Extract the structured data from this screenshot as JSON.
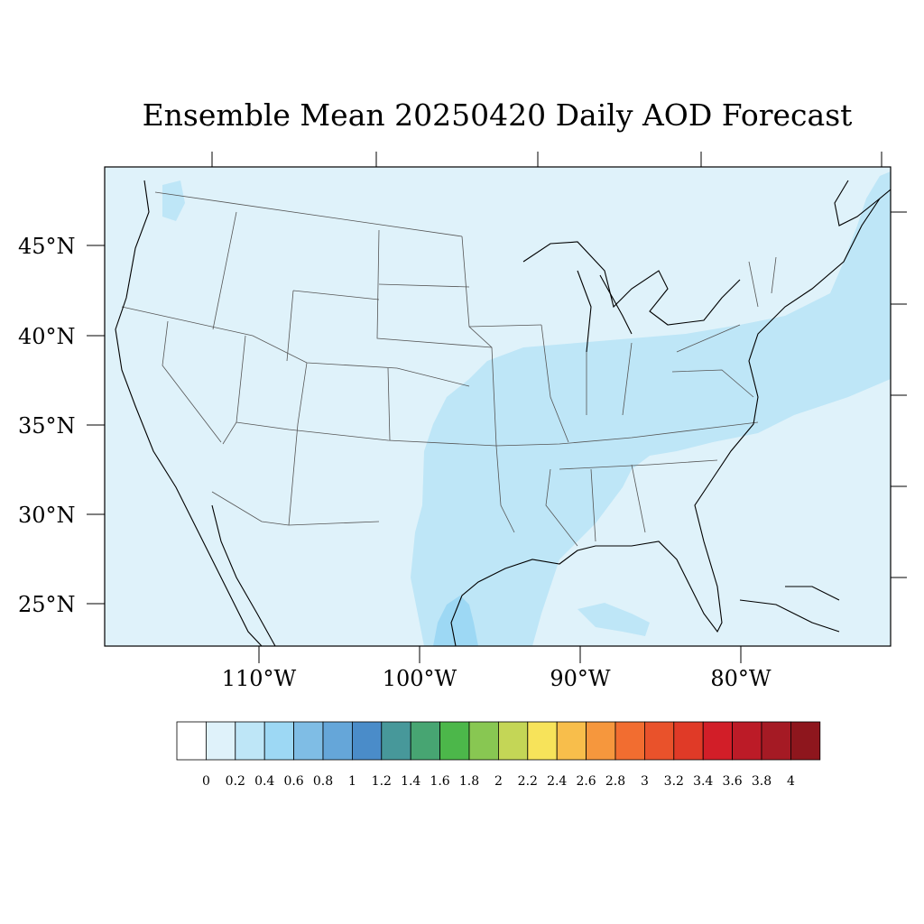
{
  "title": "Ensemble Mean 20250420 Daily AOD Forecast",
  "map": {
    "region": "Contiguous United States",
    "background_color": "#dff2fa",
    "coastline_color": "#000000",
    "state_border_color": "#555555",
    "lat_labels": [
      "45°N",
      "40°N",
      "35°N",
      "30°N",
      "25°N"
    ],
    "lon_labels": [
      "110°W",
      "100°W",
      "90°W",
      "80°W"
    ]
  },
  "colorbar": {
    "levels": [
      "0",
      "0.2",
      "0.4",
      "0.6",
      "0.8",
      "1",
      "1.2",
      "1.4",
      "1.6",
      "1.8",
      "2",
      "2.2",
      "2.4",
      "2.6",
      "2.8",
      "3",
      "3.2",
      "3.4",
      "3.6",
      "3.8",
      "4"
    ],
    "colors": [
      "#ffffff",
      "#dff2fa",
      "#bee6f7",
      "#9dd8f4",
      "#7fbde5",
      "#65a6d9",
      "#4a8cc9",
      "#47989a",
      "#47a572",
      "#4cb74a",
      "#88c752",
      "#c4d656",
      "#f7e35a",
      "#f8be4b",
      "#f6973d",
      "#f26d30",
      "#e9522b",
      "#e03a27",
      "#d21e28",
      "#bc1b27",
      "#a51a24",
      "#8e161d"
    ]
  }
}
